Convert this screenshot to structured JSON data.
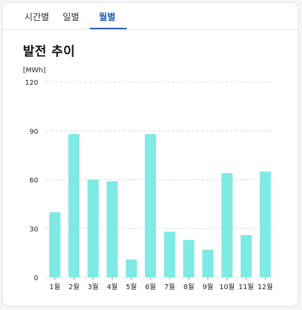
{
  "tabs": [
    {
      "label": "시간별",
      "active": false
    },
    {
      "label": "일별",
      "active": false
    },
    {
      "label": "월별",
      "active": true
    }
  ],
  "colors": {
    "bar": "#7eeae3",
    "accent": "#1f5fb8",
    "grid": "#d9dce0"
  },
  "chart_data": {
    "type": "bar",
    "title": "발전 추이",
    "unit_label": "[MWh]",
    "categories": [
      "1월",
      "2월",
      "3월",
      "4월",
      "5월",
      "6월",
      "7월",
      "8월",
      "9월",
      "10월",
      "11월",
      "12월"
    ],
    "values": [
      40,
      88,
      60,
      59,
      11,
      88,
      28,
      23,
      17,
      64,
      26,
      65
    ],
    "ylim": [
      0,
      120
    ],
    "yticks": [
      "0",
      "30",
      "60",
      "90",
      "120"
    ],
    "grid": true,
    "legend": "none"
  }
}
